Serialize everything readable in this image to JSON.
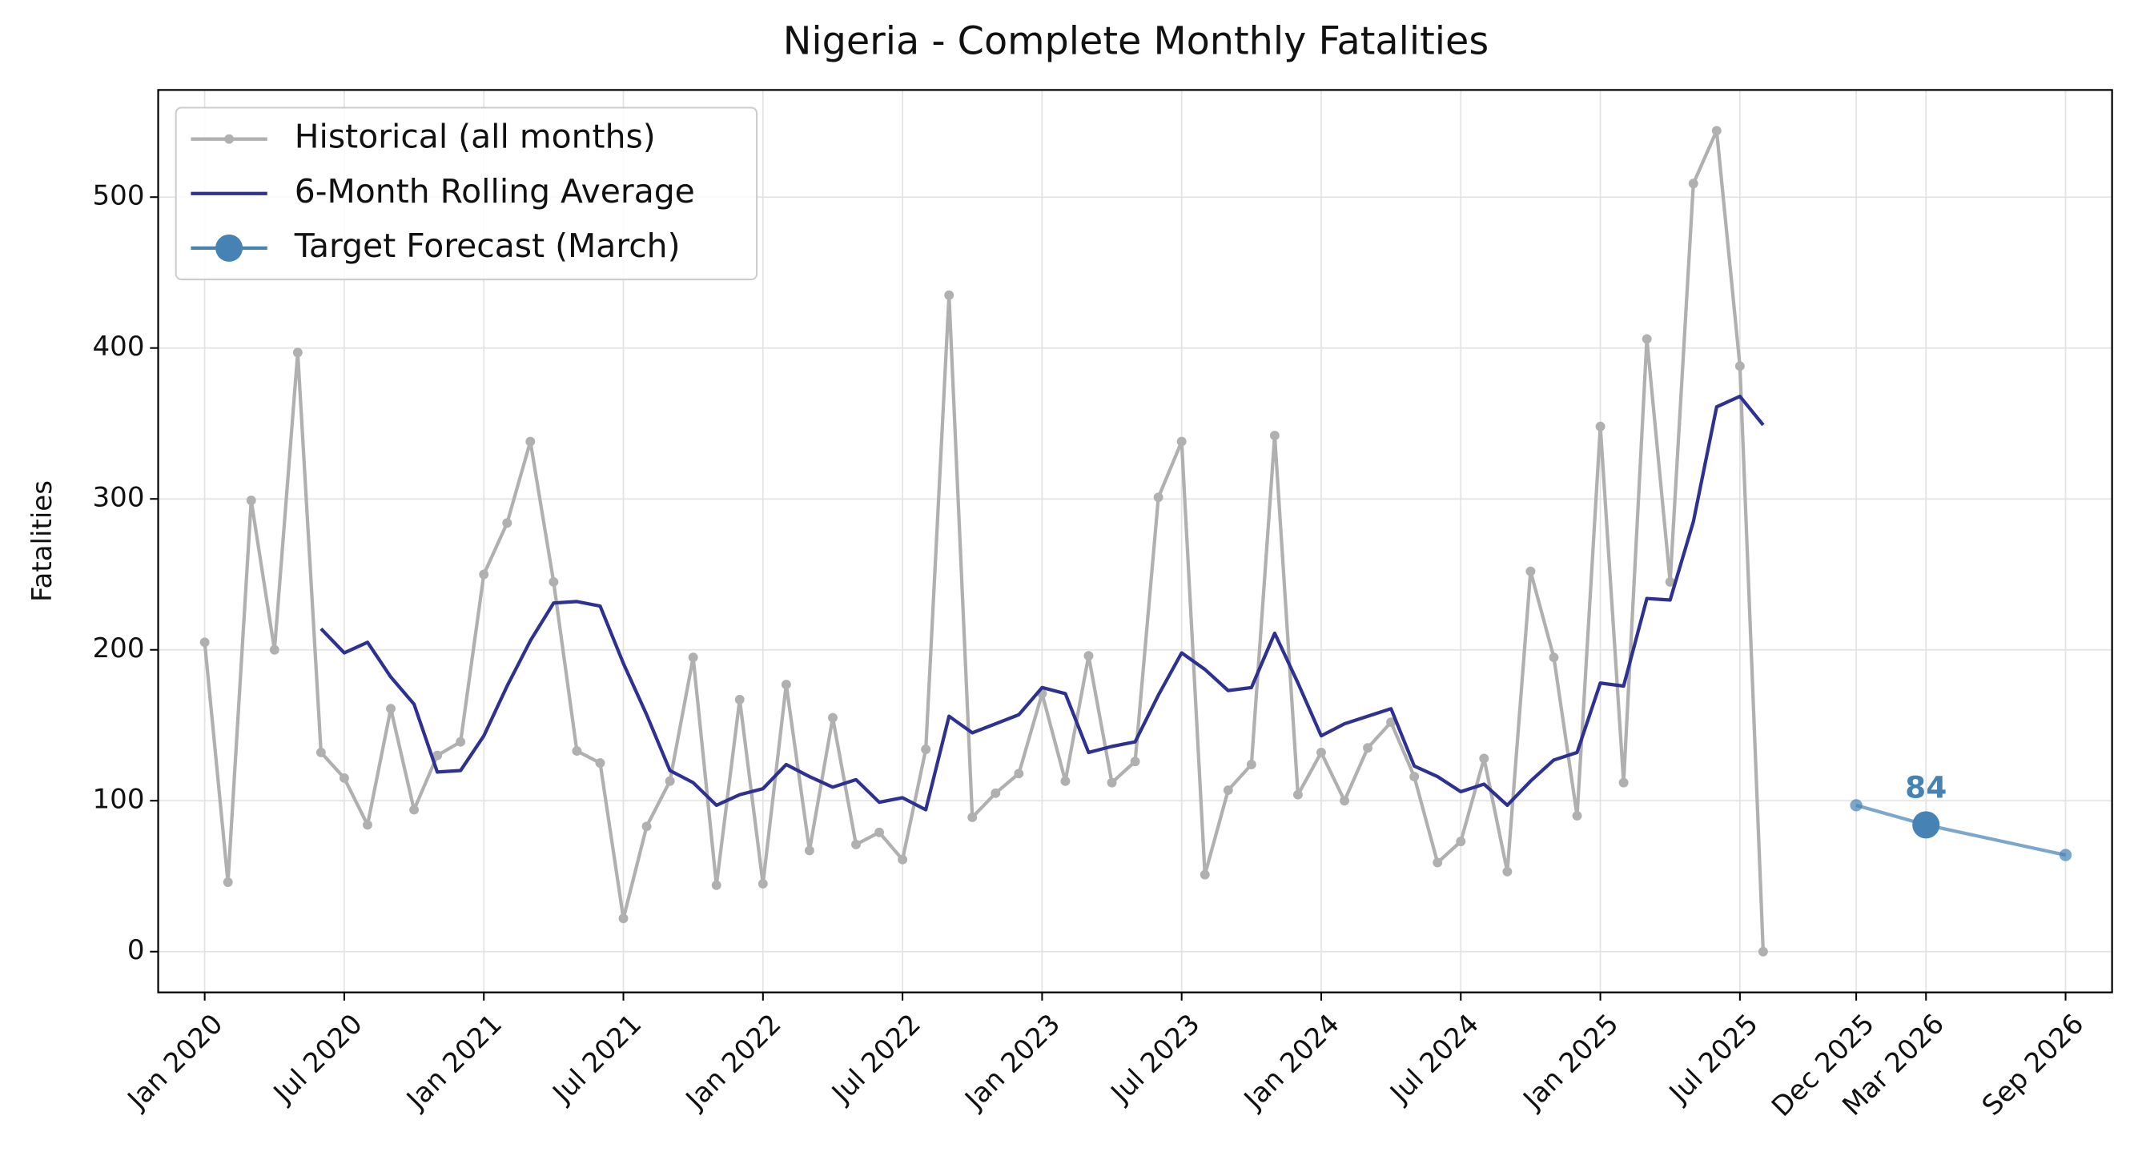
{
  "chart_data": {
    "type": "line",
    "title": "Nigeria - Complete Monthly Fatalities",
    "ylabel": "Fatalities",
    "xlim": [
      "2019-11",
      "2026-11"
    ],
    "ylim": [
      -27,
      571
    ],
    "yticks": [
      0,
      100,
      200,
      300,
      400,
      500
    ],
    "grid": true,
    "legend": "upper left",
    "xticks": [
      {
        "value": "2020-01",
        "label": "Jan 2020"
      },
      {
        "value": "2020-07",
        "label": "Jul 2020"
      },
      {
        "value": "2021-01",
        "label": "Jan 2021"
      },
      {
        "value": "2021-07",
        "label": "Jul 2021"
      },
      {
        "value": "2022-01",
        "label": "Jan 2022"
      },
      {
        "value": "2022-07",
        "label": "Jul 2022"
      },
      {
        "value": "2023-01",
        "label": "Jan 2023"
      },
      {
        "value": "2023-07",
        "label": "Jul 2023"
      },
      {
        "value": "2024-01",
        "label": "Jan 2024"
      },
      {
        "value": "2024-07",
        "label": "Jul 2024"
      },
      {
        "value": "2025-01",
        "label": "Jan 2025"
      },
      {
        "value": "2025-07",
        "label": "Jul 2025"
      },
      {
        "value": "2025-12",
        "label": "Dec 2025"
      },
      {
        "value": "2026-03",
        "label": "Mar 2026"
      },
      {
        "value": "2026-09",
        "label": "Sep 2026"
      }
    ],
    "series": [
      {
        "name": "Historical (all months)",
        "color": "#b0b0b0",
        "x": [
          "2020-01",
          "2020-02",
          "2020-03",
          "2020-04",
          "2020-05",
          "2020-06",
          "2020-07",
          "2020-08",
          "2020-09",
          "2020-10",
          "2020-11",
          "2020-12",
          "2021-01",
          "2021-02",
          "2021-03",
          "2021-04",
          "2021-05",
          "2021-06",
          "2021-07",
          "2021-08",
          "2021-09",
          "2021-10",
          "2021-11",
          "2021-12",
          "2022-01",
          "2022-02",
          "2022-03",
          "2022-04",
          "2022-05",
          "2022-06",
          "2022-07",
          "2022-08",
          "2022-09",
          "2022-10",
          "2022-11",
          "2022-12",
          "2023-01",
          "2023-02",
          "2023-03",
          "2023-04",
          "2023-05",
          "2023-06",
          "2023-07",
          "2023-08",
          "2023-09",
          "2023-10",
          "2023-11",
          "2023-12",
          "2024-01",
          "2024-02",
          "2024-03",
          "2024-04",
          "2024-05",
          "2024-06",
          "2024-07",
          "2024-08",
          "2024-09",
          "2024-10",
          "2024-11",
          "2024-12",
          "2025-01",
          "2025-02",
          "2025-03",
          "2025-04",
          "2025-05",
          "2025-06",
          "2025-07",
          "2025-08"
        ],
        "values": [
          205,
          46,
          299,
          200,
          397,
          132,
          115,
          84,
          161,
          94,
          130,
          139,
          250,
          284,
          338,
          245,
          133,
          125,
          22,
          83,
          113,
          195,
          44,
          167,
          45,
          177,
          67,
          155,
          71,
          79,
          61,
          134,
          435,
          89,
          105,
          118,
          171,
          113,
          196,
          112,
          126,
          301,
          338,
          51,
          107,
          124,
          342,
          104,
          132,
          100,
          135,
          152,
          116,
          59,
          73,
          128,
          53,
          252,
          195,
          90,
          348,
          112,
          406,
          245,
          509,
          544,
          388,
          0
        ]
      },
      {
        "name": "6-Month Rolling Average",
        "color": "#2e3192",
        "x": [
          "2020-06",
          "2020-07",
          "2020-08",
          "2020-09",
          "2020-10",
          "2020-11",
          "2020-12",
          "2021-01",
          "2021-02",
          "2021-03",
          "2021-04",
          "2021-05",
          "2021-06",
          "2021-07",
          "2021-08",
          "2021-09",
          "2021-10",
          "2021-11",
          "2021-12",
          "2022-01",
          "2022-02",
          "2022-03",
          "2022-04",
          "2022-05",
          "2022-06",
          "2022-07",
          "2022-08",
          "2022-09",
          "2022-10",
          "2022-11",
          "2022-12",
          "2023-01",
          "2023-02",
          "2023-03",
          "2023-04",
          "2023-05",
          "2023-06",
          "2023-07",
          "2023-08",
          "2023-09",
          "2023-10",
          "2023-11",
          "2023-12",
          "2024-01",
          "2024-02",
          "2024-03",
          "2024-04",
          "2024-05",
          "2024-06",
          "2024-07",
          "2024-08",
          "2024-09",
          "2024-10",
          "2024-11",
          "2024-12",
          "2025-01",
          "2025-02",
          "2025-03",
          "2025-04",
          "2025-05",
          "2025-06",
          "2025-07",
          "2025-08"
        ],
        "values": [
          214,
          198,
          205,
          182,
          164,
          119,
          120,
          143,
          176,
          206,
          231,
          232,
          229,
          191,
          157,
          120,
          112,
          97,
          104,
          108,
          124,
          116,
          109,
          114,
          99,
          102,
          94,
          156,
          145,
          151,
          157,
          175,
          171,
          132,
          136,
          139,
          170,
          198,
          187,
          173,
          175,
          211,
          178,
          143,
          151,
          156,
          161,
          123,
          116,
          106,
          111,
          97,
          113,
          127,
          132,
          178,
          176,
          234,
          233,
          285,
          361,
          368,
          349
        ]
      },
      {
        "name": "Target Forecast (March)",
        "color": "#4682b4",
        "x": [
          "2025-12",
          "2026-03",
          "2026-09"
        ],
        "values": [
          97,
          84,
          64
        ],
        "target_x": "2026-03"
      }
    ]
  }
}
